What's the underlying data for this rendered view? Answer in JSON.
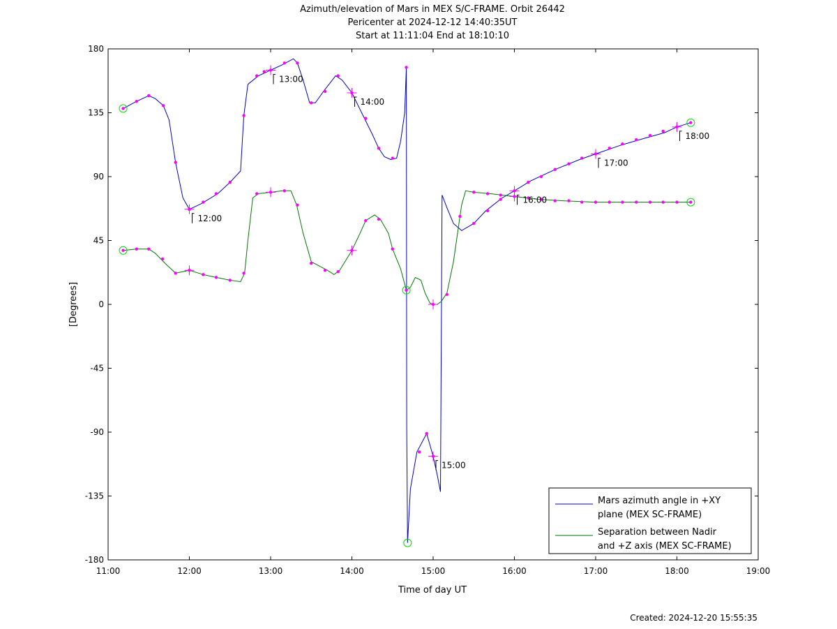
{
  "chart_data": {
    "type": "line",
    "title": [
      "Azimuth/elevation of Mars in MEX S/C-FRAME.  Orbit 26442",
      "Pericenter at 2024-12-12 14:40:35UT",
      "Start at 11:11:04 End at 18:10:10"
    ],
    "xlabel": "Time of day UT",
    "ylabel": "[Degrees]",
    "xlim": [
      11,
      19
    ],
    "ylim": [
      -180,
      180
    ],
    "xticks": [
      11,
      12,
      13,
      14,
      15,
      16,
      17,
      18,
      19
    ],
    "xtick_labels": [
      "11:00",
      "12:00",
      "13:00",
      "14:00",
      "15:00",
      "16:00",
      "17:00",
      "18:00",
      "19:00"
    ],
    "yticks": [
      180,
      135,
      90,
      45,
      0,
      -45,
      -90,
      -135,
      -180
    ],
    "ytick_labels": [
      "180",
      "135",
      "90",
      "45",
      "0",
      "-45",
      "-90",
      "-135",
      "-180"
    ],
    "legend_position": "bottom-right",
    "series": [
      {
        "name": "Mars azimuth angle in +XY plane (MEX SC-FRAME)",
        "legend_lines": [
          "Mars azimuth angle in +XY",
          "plane (MEX SC-FRAME)"
        ],
        "color": "#0000cc",
        "points": [
          [
            11.185,
            138
          ],
          [
            11.35,
            143
          ],
          [
            11.5,
            147
          ],
          [
            11.58,
            145
          ],
          [
            11.68,
            140
          ],
          [
            11.75,
            130
          ],
          [
            11.83,
            100
          ],
          [
            11.92,
            75
          ],
          [
            12.0,
            67
          ],
          [
            12.15,
            71
          ],
          [
            12.35,
            78
          ],
          [
            12.5,
            86
          ],
          [
            12.63,
            94
          ],
          [
            12.67,
            133
          ],
          [
            12.72,
            155
          ],
          [
            12.85,
            161
          ],
          [
            13.0,
            165
          ],
          [
            13.15,
            169
          ],
          [
            13.28,
            173
          ],
          [
            13.33,
            170
          ],
          [
            13.4,
            158
          ],
          [
            13.48,
            142
          ],
          [
            13.55,
            142
          ],
          [
            13.65,
            150
          ],
          [
            13.8,
            161
          ],
          [
            13.88,
            158
          ],
          [
            14.0,
            149
          ],
          [
            14.12,
            135
          ],
          [
            14.25,
            120
          ],
          [
            14.33,
            110
          ],
          [
            14.4,
            104
          ],
          [
            14.48,
            102
          ],
          [
            14.55,
            103
          ],
          [
            14.6,
            115
          ],
          [
            14.65,
            135
          ],
          [
            14.67,
            167
          ],
          [
            14.675,
            -85
          ],
          [
            14.685,
            -168
          ],
          [
            14.72,
            -130
          ],
          [
            14.8,
            -104
          ],
          [
            14.92,
            -91
          ],
          [
            15.0,
            -107
          ],
          [
            15.05,
            -120
          ],
          [
            15.09,
            -132
          ],
          [
            15.11,
            77
          ],
          [
            15.17,
            68
          ],
          [
            15.25,
            57
          ],
          [
            15.35,
            52
          ],
          [
            15.5,
            57
          ],
          [
            15.65,
            66
          ],
          [
            15.85,
            75
          ],
          [
            16.0,
            80
          ],
          [
            16.2,
            87
          ],
          [
            16.5,
            95
          ],
          [
            16.8,
            102
          ],
          [
            17.0,
            106
          ],
          [
            17.3,
            112
          ],
          [
            17.6,
            117
          ],
          [
            17.85,
            121
          ],
          [
            18.0,
            125
          ],
          [
            18.17,
            128
          ]
        ]
      },
      {
        "name": "Separation between Nadir and +Z axis (MEX SC-FRAME)",
        "legend_lines": [
          "Separation between Nadir",
          "and +Z axis (MEX SC-FRAME)"
        ],
        "color": "#007700",
        "points": [
          [
            11.185,
            38
          ],
          [
            11.35,
            39
          ],
          [
            11.5,
            39
          ],
          [
            11.58,
            36
          ],
          [
            11.7,
            29
          ],
          [
            11.83,
            22
          ],
          [
            12.0,
            24
          ],
          [
            12.17,
            21
          ],
          [
            12.33,
            19
          ],
          [
            12.5,
            17
          ],
          [
            12.63,
            16
          ],
          [
            12.68,
            22
          ],
          [
            12.72,
            45
          ],
          [
            12.78,
            75
          ],
          [
            12.85,
            78
          ],
          [
            13.0,
            79
          ],
          [
            13.15,
            80
          ],
          [
            13.25,
            80
          ],
          [
            13.32,
            70
          ],
          [
            13.4,
            50
          ],
          [
            13.5,
            30
          ],
          [
            13.6,
            27
          ],
          [
            13.7,
            24
          ],
          [
            13.78,
            21
          ],
          [
            13.85,
            24
          ],
          [
            14.0,
            38
          ],
          [
            14.1,
            50
          ],
          [
            14.17,
            59
          ],
          [
            14.28,
            63
          ],
          [
            14.35,
            60
          ],
          [
            14.45,
            50
          ],
          [
            14.5,
            39
          ],
          [
            14.6,
            25
          ],
          [
            14.67,
            10
          ],
          [
            14.72,
            12
          ],
          [
            14.78,
            19
          ],
          [
            14.85,
            17
          ],
          [
            14.9,
            8
          ],
          [
            14.96,
            1
          ],
          [
            15.0,
            0
          ],
          [
            15.05,
            0
          ],
          [
            15.1,
            2
          ],
          [
            15.17,
            8
          ],
          [
            15.25,
            30
          ],
          [
            15.35,
            70
          ],
          [
            15.4,
            80
          ],
          [
            15.5,
            79
          ],
          [
            15.7,
            78
          ],
          [
            16.0,
            76
          ],
          [
            16.3,
            74
          ],
          [
            16.6,
            73
          ],
          [
            17.0,
            72
          ],
          [
            17.5,
            72
          ],
          [
            18.17,
            72
          ]
        ]
      }
    ],
    "marker_points": [
      [
        11.185,
        138
      ],
      [
        11.35,
        143
      ],
      [
        11.5,
        147
      ],
      [
        11.68,
        140
      ],
      [
        11.83,
        100
      ],
      [
        12.0,
        67
      ],
      [
        12.17,
        72
      ],
      [
        12.33,
        78
      ],
      [
        12.5,
        86
      ],
      [
        12.67,
        133
      ],
      [
        12.83,
        161
      ],
      [
        12.92,
        164
      ],
      [
        13.0,
        165
      ],
      [
        13.17,
        170
      ],
      [
        13.33,
        170
      ],
      [
        13.5,
        142
      ],
      [
        13.67,
        150
      ],
      [
        13.83,
        161
      ],
      [
        14.0,
        149
      ],
      [
        14.17,
        131
      ],
      [
        14.33,
        110
      ],
      [
        14.5,
        103
      ],
      [
        14.67,
        167
      ],
      [
        14.83,
        -104
      ],
      [
        14.92,
        -91
      ],
      [
        15.0,
        -107
      ],
      [
        15.5,
        57
      ],
      [
        15.67,
        66
      ],
      [
        15.83,
        74
      ],
      [
        16.0,
        80
      ],
      [
        16.17,
        86
      ],
      [
        16.33,
        90
      ],
      [
        16.5,
        95
      ],
      [
        16.67,
        99
      ],
      [
        16.83,
        103
      ],
      [
        17.0,
        106
      ],
      [
        17.17,
        110
      ],
      [
        17.33,
        113
      ],
      [
        17.5,
        116
      ],
      [
        17.67,
        119
      ],
      [
        17.83,
        122
      ],
      [
        18.0,
        125
      ],
      [
        18.17,
        128
      ],
      [
        11.185,
        38
      ],
      [
        11.35,
        39
      ],
      [
        11.5,
        39
      ],
      [
        11.67,
        32
      ],
      [
        11.83,
        22
      ],
      [
        12.0,
        24
      ],
      [
        12.17,
        21
      ],
      [
        12.33,
        19
      ],
      [
        12.5,
        17
      ],
      [
        12.67,
        22
      ],
      [
        12.83,
        78
      ],
      [
        13.0,
        79
      ],
      [
        13.17,
        80
      ],
      [
        13.33,
        70
      ],
      [
        13.5,
        29
      ],
      [
        13.67,
        24
      ],
      [
        13.83,
        23
      ],
      [
        14.0,
        38
      ],
      [
        14.17,
        59
      ],
      [
        14.33,
        60
      ],
      [
        14.5,
        39
      ],
      [
        14.67,
        10
      ],
      [
        15.0,
        0
      ],
      [
        15.17,
        7
      ],
      [
        15.33,
        62
      ],
      [
        15.5,
        79
      ],
      [
        15.67,
        78
      ],
      [
        15.83,
        77
      ],
      [
        16.0,
        76
      ],
      [
        16.17,
        75
      ],
      [
        16.33,
        74
      ],
      [
        16.5,
        73
      ],
      [
        16.67,
        73
      ],
      [
        16.83,
        72
      ],
      [
        17.0,
        72
      ],
      [
        17.17,
        72
      ],
      [
        17.33,
        72
      ],
      [
        17.5,
        72
      ],
      [
        17.67,
        72
      ],
      [
        17.83,
        72
      ],
      [
        18.0,
        72
      ],
      [
        18.17,
        72
      ]
    ],
    "hour_crosses": [
      [
        12.0,
        67
      ],
      [
        13.0,
        165
      ],
      [
        14.0,
        149
      ],
      [
        15.0,
        -107
      ],
      [
        16.0,
        80
      ],
      [
        17.0,
        106
      ],
      [
        18.0,
        125
      ],
      [
        12.0,
        24
      ],
      [
        13.0,
        79
      ],
      [
        14.0,
        38
      ],
      [
        15.0,
        0
      ],
      [
        16.0,
        76
      ]
    ],
    "circle_points": [
      [
        11.185,
        138
      ],
      [
        18.17,
        128
      ],
      [
        14.685,
        -168
      ],
      [
        11.185,
        38
      ],
      [
        18.17,
        72
      ],
      [
        14.67,
        10
      ]
    ],
    "time_labels": [
      {
        "t": 12.0,
        "y": 67,
        "label": "12:00"
      },
      {
        "t": 13.0,
        "y": 165,
        "label": "13:00"
      },
      {
        "t": 14.0,
        "y": 149,
        "label": "14:00"
      },
      {
        "t": 15.0,
        "y": -107,
        "label": "15:00"
      },
      {
        "t": 16.0,
        "y": 80,
        "label": "16:00"
      },
      {
        "t": 17.0,
        "y": 106,
        "label": "17:00"
      },
      {
        "t": 18.0,
        "y": 125,
        "label": "18:00"
      }
    ]
  },
  "footer": {
    "created": "Created: 2024-12-20 15:55:35"
  }
}
